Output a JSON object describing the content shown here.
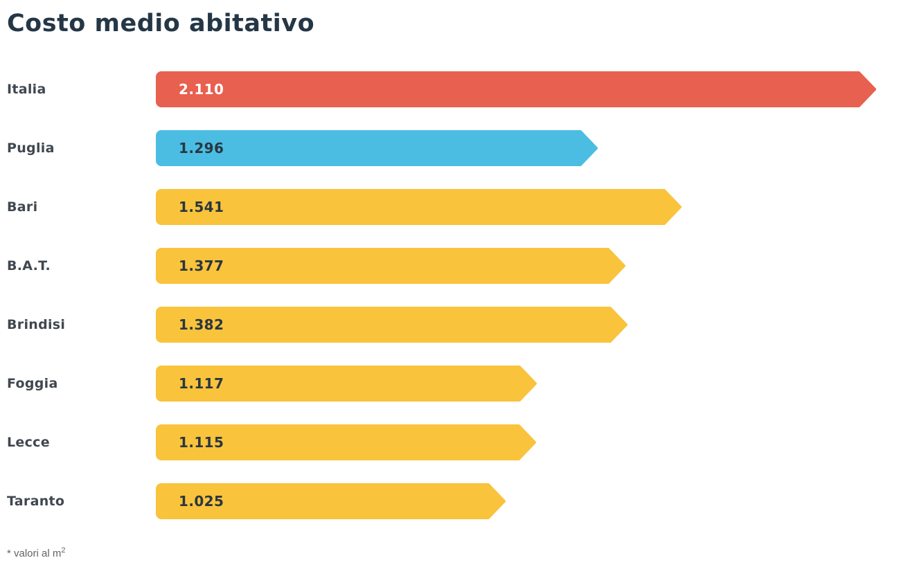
{
  "title": "Costo medio abitativo",
  "footnote": {
    "text": "* valori al m",
    "superscript": "2"
  },
  "colors": {
    "accent_red": "#E8604F",
    "accent_blue": "#4BBDE2",
    "accent_yellow": "#F9C33C",
    "title_text": "#253746",
    "label_text": "#40474F",
    "value_text_dark": "#2A3640",
    "value_text_light": "#FFFFFF",
    "footnote_text": "#606468",
    "background": "#FFFFFF"
  },
  "chart_data": {
    "type": "bar",
    "orientation": "horizontal",
    "title": "Costo medio abitativo",
    "xlabel": "",
    "ylabel": "",
    "xlim": [
      0,
      2110
    ],
    "grid": false,
    "legend": false,
    "unit_note": "valori al m2",
    "categories": [
      "Italia",
      "Puglia",
      "Bari",
      "B.A.T.",
      "Brindisi",
      "Foggia",
      "Lecce",
      "Taranto"
    ],
    "values": [
      2110,
      1296,
      1541,
      1377,
      1382,
      1117,
      1115,
      1025
    ],
    "value_labels": [
      "2.110",
      "1.296",
      "1.541",
      "1.377",
      "1.382",
      "1.117",
      "1.115",
      "1.025"
    ],
    "bar_colors": [
      "#E8604F",
      "#4BBDE2",
      "#F9C33C",
      "#F9C33C",
      "#F9C33C",
      "#F9C33C",
      "#F9C33C",
      "#F9C33C"
    ],
    "value_text_colors": [
      "#FFFFFF",
      "#2A3640",
      "#2A3640",
      "#2A3640",
      "#2A3640",
      "#2A3640",
      "#2A3640",
      "#2A3640"
    ]
  }
}
